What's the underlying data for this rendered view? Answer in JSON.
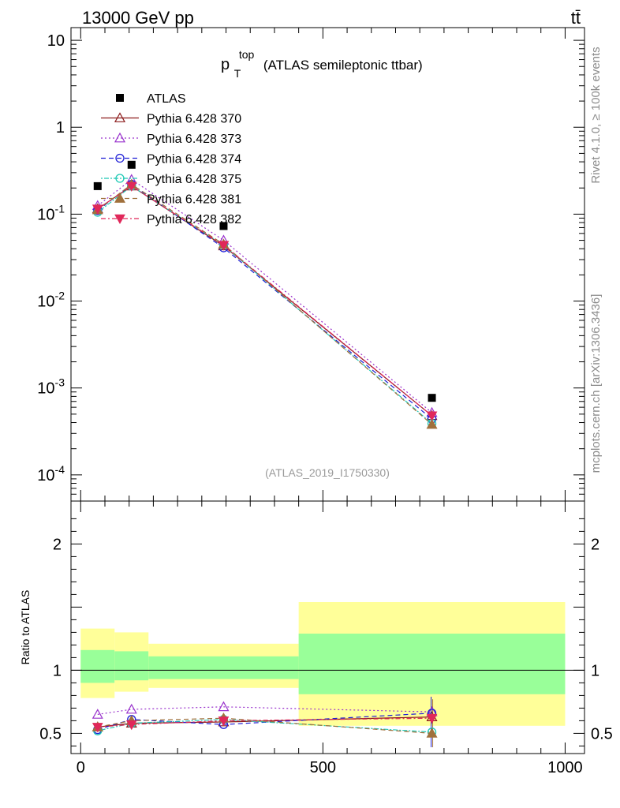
{
  "header": {
    "left": "13000 GeV pp",
    "right": "tt̄"
  },
  "side": {
    "top": "Rivet 4.1.0, ≥ 100k events",
    "bottom": "mcplots.cern.ch [arXiv:1306.3436]"
  },
  "plot_title": {
    "main": "p",
    "sub": "T",
    "sup": "top",
    "rest": "(ATLAS semileptonic ttbar)"
  },
  "ref_label": "(ATLAS_2019_I1750330)",
  "ratio_ylabel": "Ratio to ATLAS",
  "chart_data": {
    "type": "line",
    "title": "p_T^top (ATLAS semileptonic ttbar)",
    "xlabel": "",
    "top_panel": {
      "yscale": "log",
      "ylim": [
        5e-05,
        14
      ],
      "yticks": [
        "10^-4",
        "10^-3",
        "10^-2",
        "10^-1",
        "1",
        "10"
      ]
    },
    "ratio_panel": {
      "ylabel": "Ratio to ATLAS",
      "ylim": [
        0.34,
        2.34
      ],
      "yticks": [
        "0.5",
        "1",
        "2"
      ],
      "bands": [
        {
          "xmin": 0,
          "xmax": 70,
          "green": [
            0.9,
            1.16
          ],
          "yellow": [
            0.78,
            1.33
          ]
        },
        {
          "xmin": 70,
          "xmax": 140,
          "green": [
            0.92,
            1.15
          ],
          "yellow": [
            0.83,
            1.3
          ]
        },
        {
          "xmin": 140,
          "xmax": 450,
          "green": [
            0.93,
            1.11
          ],
          "yellow": [
            0.86,
            1.21
          ]
        },
        {
          "xmin": 450,
          "xmax": 1000,
          "green": [
            0.81,
            1.29
          ],
          "yellow": [
            0.56,
            1.54
          ]
        }
      ]
    },
    "xlim": [
      -20,
      1040
    ],
    "xticks": [
      0,
      500,
      1000
    ],
    "x": [
      35,
      105,
      295,
      725
    ],
    "data": {
      "name": "ATLAS",
      "values": [
        0.21,
        0.37,
        0.073,
        0.00077
      ]
    },
    "series": [
      {
        "name": "Pythia 6.428 370",
        "color": "#8b1a1a",
        "marker": "triangle-open",
        "dash": "",
        "values": [
          0.115,
          0.21,
          0.043,
          0.00048
        ],
        "ratio": [
          0.55,
          0.58,
          0.59,
          0.63
        ]
      },
      {
        "name": "Pythia 6.428 373",
        "color": "#9932cc",
        "marker": "triangle-open",
        "dash": "2,3",
        "values": [
          0.125,
          0.25,
          0.05,
          0.00052
        ],
        "ratio": [
          0.65,
          0.69,
          0.71,
          0.67
        ]
      },
      {
        "name": "Pythia 6.428 374",
        "color": "#1f1fd6",
        "marker": "circle-open",
        "dash": "6,4",
        "values": [
          0.11,
          0.22,
          0.041,
          0.00044
        ],
        "ratio": [
          0.53,
          0.61,
          0.57,
          0.66
        ]
      },
      {
        "name": "Pythia 6.428 375",
        "color": "#1ec8b4",
        "marker": "circle-open",
        "dash": "2,2,6,2",
        "values": [
          0.105,
          0.21,
          0.044,
          0.00039
        ],
        "ratio": [
          0.52,
          0.58,
          0.61,
          0.51
        ]
      },
      {
        "name": "Pythia 6.428 381",
        "color": "#a0703c",
        "marker": "triangle-filled",
        "dash": "6,4",
        "values": [
          0.112,
          0.22,
          0.045,
          0.00038
        ],
        "ratio": [
          0.55,
          0.6,
          0.62,
          0.5
        ]
      },
      {
        "name": "Pythia 6.428 382",
        "color": "#e0285a",
        "marker": "triangle-down-filled",
        "dash": "6,3,2,3",
        "values": [
          0.115,
          0.21,
          0.044,
          0.00048
        ],
        "ratio": [
          0.55,
          0.57,
          0.6,
          0.62
        ]
      }
    ]
  }
}
